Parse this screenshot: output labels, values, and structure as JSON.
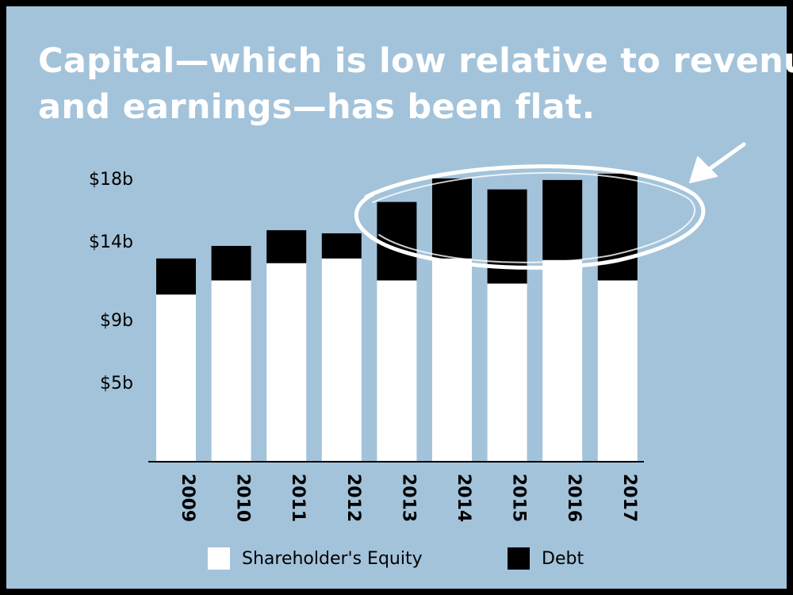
{
  "title": {
    "line1": "Capital—which is low relative to revenue",
    "line2": "and earnings—has been flat."
  },
  "colors": {
    "background": "#a3c3da",
    "equity": "#ffffff",
    "debt": "#000000",
    "annotation": "#ffffff"
  },
  "chart_data": {
    "type": "bar",
    "stacked": true,
    "title": "Capital—which is low relative to revenue and earnings—has been flat.",
    "categories": [
      "2009",
      "2010",
      "2011",
      "2012",
      "2013",
      "2014",
      "2015",
      "2016",
      "2017"
    ],
    "series": [
      {
        "name": "Shareholder's Equity",
        "values": [
          10.6,
          11.5,
          12.6,
          12.9,
          11.5,
          12.9,
          11.3,
          12.8,
          11.5
        ]
      },
      {
        "name": "Debt",
        "values": [
          2.3,
          2.2,
          2.1,
          1.6,
          5.0,
          5.1,
          6.0,
          5.1,
          6.8
        ]
      }
    ],
    "yticks": [
      5,
      9,
      14,
      18
    ],
    "ytick_labels": [
      "$5b",
      "$9b",
      "$14b",
      "$18b"
    ],
    "ylim": [
      0,
      18.5
    ],
    "xlabel": "",
    "ylabel": "",
    "grid": false,
    "legend": "bottom",
    "annotation": "circle and arrow highlighting 2013–2017 totals"
  }
}
